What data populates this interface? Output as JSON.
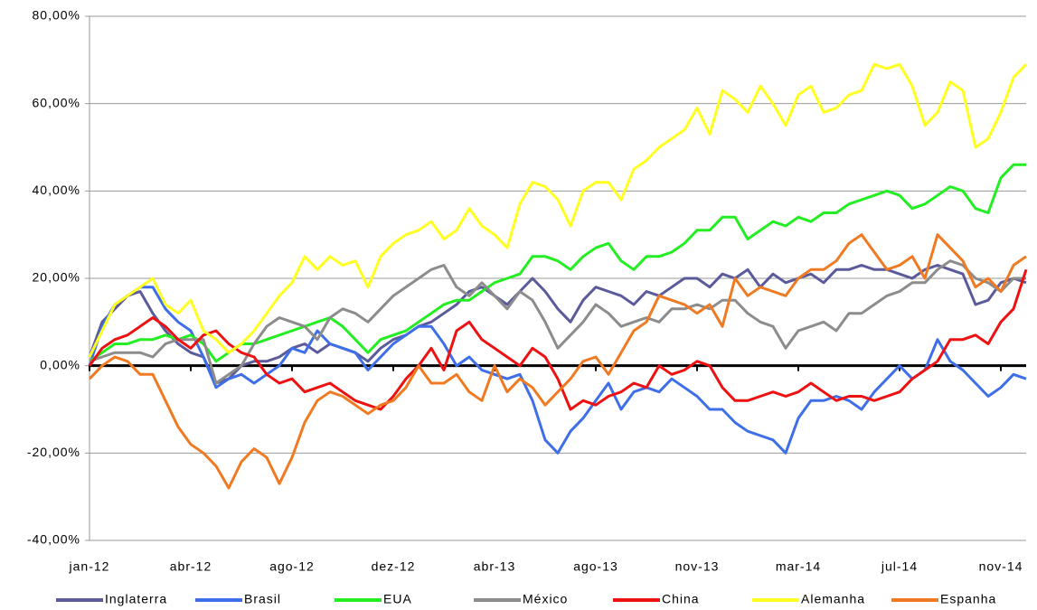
{
  "chart_data": {
    "type": "line",
    "categories": [
      "jan-12",
      null,
      null,
      null,
      null,
      null,
      null,
      null,
      "abr-12",
      null,
      null,
      null,
      null,
      null,
      null,
      null,
      "ago-12",
      null,
      null,
      null,
      null,
      null,
      null,
      null,
      "dez-12",
      null,
      null,
      null,
      null,
      null,
      null,
      null,
      "abr-13",
      null,
      null,
      null,
      null,
      null,
      null,
      null,
      "ago-13",
      null,
      null,
      null,
      null,
      null,
      null,
      null,
      "nov-13",
      null,
      null,
      null,
      null,
      null,
      null,
      null,
      "mar-14",
      null,
      null,
      null,
      null,
      null,
      null,
      null,
      "jul-14",
      null,
      null,
      null,
      null,
      null,
      null,
      null,
      "nov-14",
      null,
      null
    ],
    "ylim": [
      -40,
      80
    ],
    "yticks": [
      {
        "value": -40,
        "label": "-40,00%"
      },
      {
        "value": -20,
        "label": "-20,00%"
      },
      {
        "value": 0,
        "label": "0,00%"
      },
      {
        "value": 20,
        "label": "20,00%"
      },
      {
        "value": 40,
        "label": "40,00%"
      },
      {
        "value": 60,
        "label": "60,00%"
      },
      {
        "value": 80,
        "label": "80,00%"
      }
    ],
    "grid": true,
    "legend": "bottom",
    "series": [
      {
        "name": "Inglaterra",
        "color": "#5b5b9b",
        "values": [
          2,
          10,
          13,
          16,
          17,
          12,
          8,
          5,
          3,
          2,
          -4,
          -3,
          0,
          1,
          1,
          2,
          4,
          5,
          3,
          5,
          4,
          3,
          1,
          4,
          6,
          7,
          9,
          10,
          12,
          14,
          17,
          18,
          16,
          14,
          17,
          20,
          17,
          13,
          10,
          15,
          18,
          17,
          16,
          14,
          17,
          16,
          18,
          20,
          20,
          18,
          21,
          20,
          22,
          18,
          21,
          19,
          20,
          21,
          19,
          22,
          22,
          23,
          22,
          22,
          21,
          20,
          22,
          23,
          22,
          21,
          14,
          15,
          19,
          20,
          19
        ]
      },
      {
        "name": "Brasil",
        "color": "#3f6fe8",
        "values": [
          0,
          9,
          14,
          16,
          18,
          18,
          13,
          10,
          8,
          2,
          -5,
          -3,
          -2,
          -4,
          -2,
          0,
          4,
          3,
          8,
          5,
          4,
          3,
          -1,
          2,
          5,
          7,
          9,
          9,
          5,
          0,
          2,
          -1,
          -2,
          -3,
          -2,
          -8,
          -17,
          -20,
          -15,
          -12,
          -8,
          -4,
          -10,
          -6,
          -5,
          -6,
          -3,
          -5,
          -7,
          -10,
          -10,
          -13,
          -15,
          -16,
          -17,
          -20,
          -12,
          -8,
          -8,
          -7,
          -8,
          -10,
          -6,
          -3,
          0,
          -3,
          -1,
          6,
          1,
          -1,
          -4,
          -7,
          -5,
          -2,
          -3
        ]
      },
      {
        "name": "EUA",
        "color": "#22ee22",
        "values": [
          1,
          3,
          5,
          5,
          6,
          6,
          7,
          6,
          7,
          5,
          1,
          3,
          5,
          5,
          6,
          7,
          8,
          9,
          10,
          11,
          9,
          6,
          3,
          6,
          7,
          8,
          10,
          12,
          14,
          15,
          15,
          17,
          19,
          20,
          21,
          25,
          25,
          24,
          22,
          25,
          27,
          28,
          24,
          22,
          25,
          25,
          26,
          28,
          31,
          31,
          34,
          34,
          29,
          31,
          33,
          32,
          34,
          33,
          35,
          35,
          37,
          38,
          39,
          40,
          39,
          36,
          37,
          39,
          41,
          40,
          36,
          35,
          43,
          46,
          46
        ]
      },
      {
        "name": "México",
        "color": "#8c8c8c",
        "values": [
          1,
          2,
          3,
          3,
          3,
          2,
          5,
          6,
          6,
          6,
          -4,
          -2,
          0,
          5,
          9,
          11,
          10,
          9,
          6,
          11,
          13,
          12,
          10,
          13,
          16,
          18,
          20,
          22,
          23,
          18,
          16,
          19,
          16,
          13,
          17,
          15,
          10,
          4,
          7,
          10,
          14,
          12,
          9,
          10,
          11,
          10,
          13,
          13,
          14,
          13,
          15,
          15,
          12,
          10,
          9,
          4,
          8,
          9,
          10,
          8,
          12,
          12,
          14,
          16,
          17,
          19,
          19,
          22,
          24,
          23,
          20,
          19,
          17,
          20,
          20
        ]
      },
      {
        "name": "China",
        "color": "#ee1111",
        "values": [
          0,
          4,
          6,
          7,
          9,
          11,
          9,
          6,
          4,
          7,
          8,
          5,
          3,
          2,
          -2,
          -4,
          -3,
          -6,
          -5,
          -4,
          -6,
          -8,
          -9,
          -10,
          -7,
          -3,
          0,
          4,
          -1,
          8,
          10,
          6,
          4,
          2,
          0,
          4,
          2,
          -3,
          -10,
          -8,
          -9,
          -7,
          -6,
          -4,
          -5,
          0,
          -2,
          -1,
          1,
          0,
          -5,
          -8,
          -8,
          -7,
          -6,
          -7,
          -6,
          -4,
          -6,
          -8,
          -7,
          -7,
          -8,
          -7,
          -6,
          -3,
          -1,
          1,
          6,
          6,
          7,
          5,
          10,
          13,
          22
        ]
      },
      {
        "name": "Alemanha",
        "color": "#ffff22",
        "values": [
          2,
          8,
          14,
          16,
          18,
          20,
          14,
          12,
          15,
          8,
          6,
          3,
          5,
          8,
          12,
          16,
          19,
          25,
          22,
          25,
          23,
          24,
          18,
          25,
          28,
          30,
          31,
          33,
          29,
          31,
          36,
          32,
          30,
          27,
          37,
          42,
          41,
          38,
          32,
          40,
          42,
          42,
          38,
          45,
          47,
          50,
          52,
          54,
          59,
          53,
          63,
          61,
          58,
          64,
          60,
          55,
          62,
          64,
          58,
          59,
          62,
          63,
          69,
          68,
          69,
          64,
          55,
          58,
          65,
          63,
          50,
          52,
          58,
          66,
          69
        ]
      },
      {
        "name": "Espanha",
        "color": "#f07a22",
        "values": [
          -3,
          0,
          2,
          1,
          -2,
          -2,
          -8,
          -14,
          -18,
          -20,
          -23,
          -28,
          -22,
          -19,
          -21,
          -27,
          -21,
          -13,
          -8,
          -6,
          -7,
          -9,
          -11,
          -9,
          -8,
          -5,
          0,
          -4,
          -4,
          -2,
          -6,
          -8,
          0,
          -6,
          -3,
          -5,
          -9,
          -6,
          -3,
          1,
          2,
          -2,
          3,
          8,
          10,
          16,
          15,
          14,
          12,
          14,
          9,
          20,
          16,
          18,
          17,
          16,
          20,
          22,
          22,
          24,
          28,
          30,
          26,
          22,
          23,
          25,
          20,
          30,
          27,
          24,
          18,
          20,
          17,
          23,
          25
        ]
      }
    ]
  }
}
